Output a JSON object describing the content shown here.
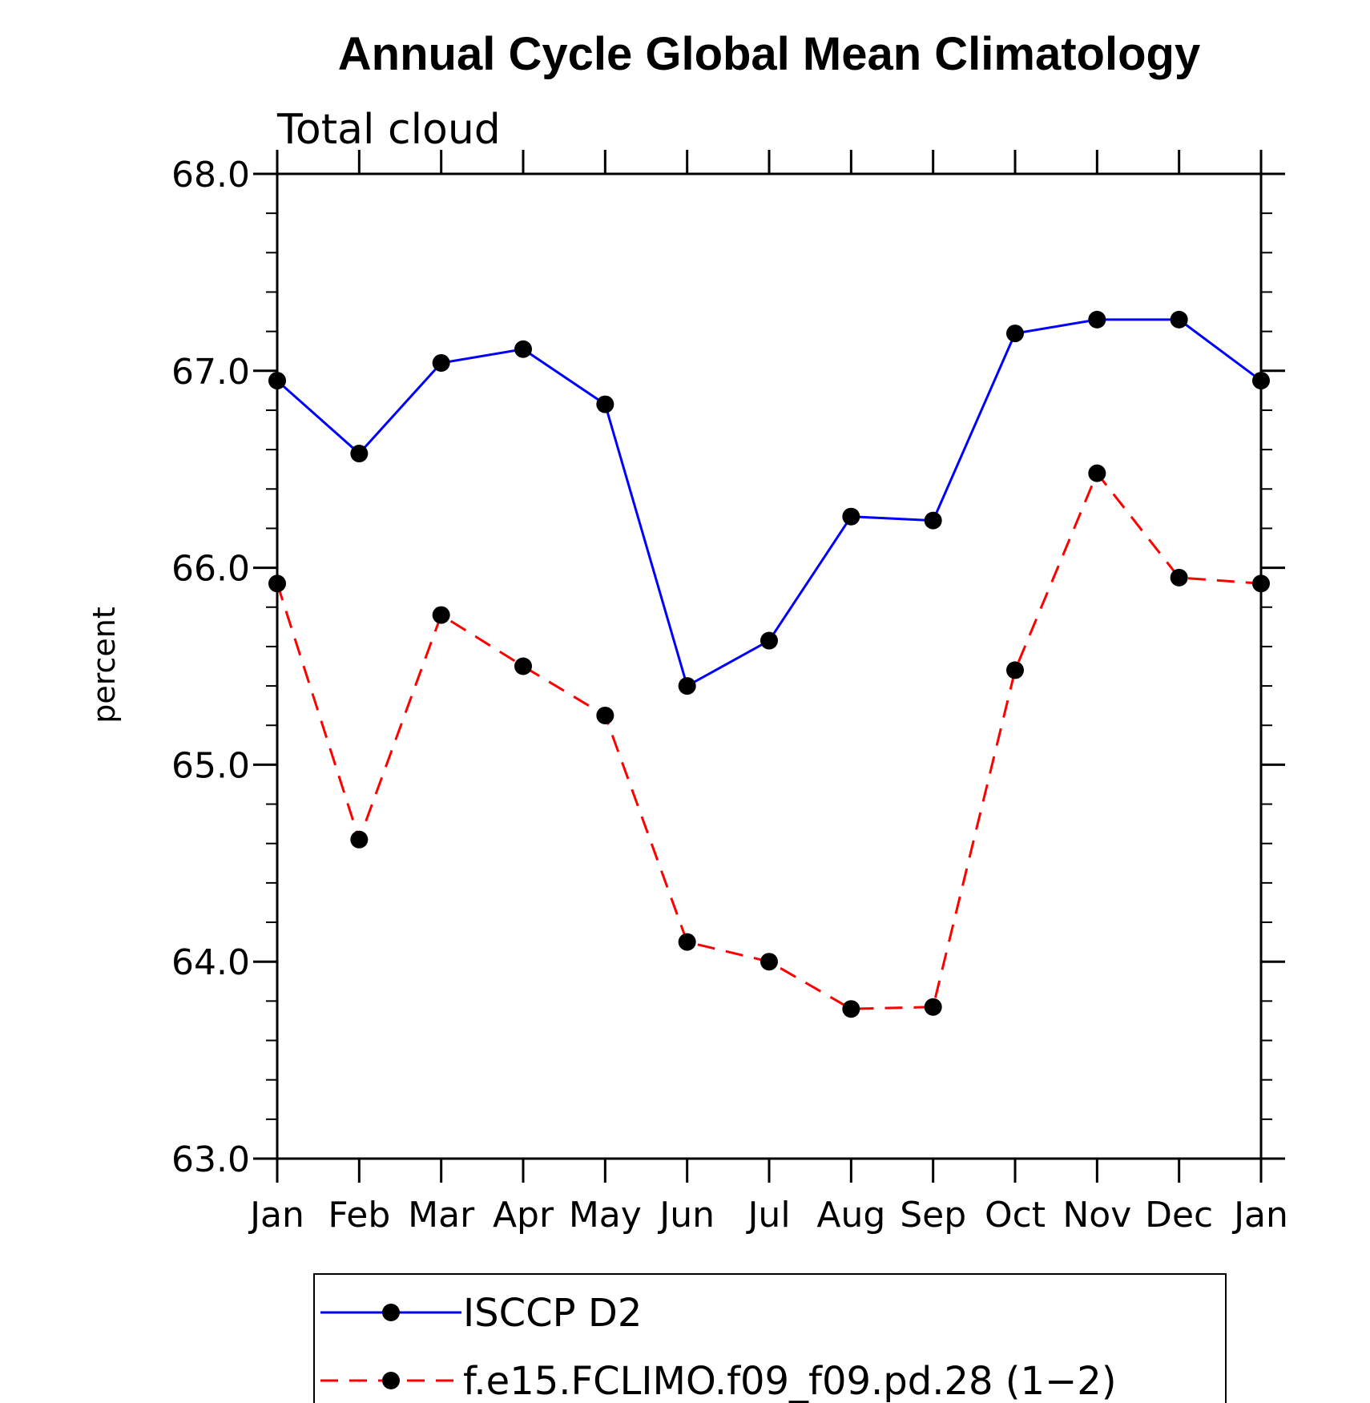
{
  "chart_data": {
    "type": "line",
    "title": "Annual Cycle Global Mean Climatology",
    "subtitle": "Total cloud",
    "xlabel": "",
    "ylabel": "percent",
    "ylim": [
      63.0,
      68.0
    ],
    "yticks": [
      "63.0",
      "64.0",
      "65.0",
      "66.0",
      "67.0",
      "68.0"
    ],
    "yticks_values": [
      63.0,
      64.0,
      65.0,
      66.0,
      67.0,
      68.0
    ],
    "categories": [
      "Jan",
      "Feb",
      "Mar",
      "Apr",
      "May",
      "Jun",
      "Jul",
      "Aug",
      "Sep",
      "Oct",
      "Nov",
      "Dec",
      "Jan"
    ],
    "grid": false,
    "legend_position": "bottom",
    "series": [
      {
        "name": "ISCCP D2",
        "color": "#0000ff",
        "style": "solid",
        "marker": "filled-circle",
        "values": [
          66.95,
          66.58,
          67.04,
          67.11,
          66.83,
          65.4,
          65.63,
          66.26,
          66.24,
          67.19,
          67.26,
          67.26,
          66.95
        ]
      },
      {
        "name": "f.e15.FCLIMO.f09_f09.pd.28 (1−2)",
        "color": "#ff0000",
        "style": "dashed",
        "marker": "filled-circle",
        "values": [
          65.92,
          64.62,
          65.76,
          65.5,
          65.25,
          64.1,
          64.0,
          63.76,
          63.77,
          65.48,
          66.48,
          65.95,
          65.92
        ]
      }
    ]
  }
}
